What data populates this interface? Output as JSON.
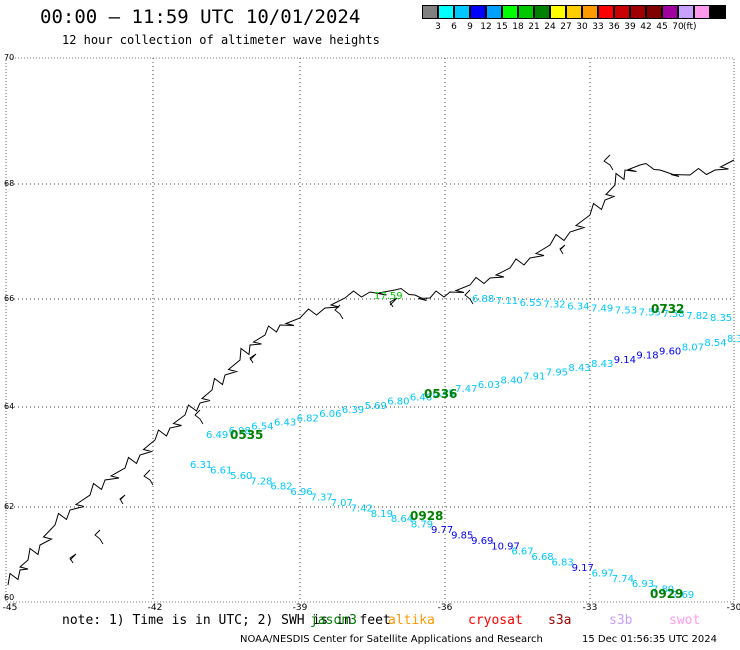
{
  "header": {
    "title": "00:00 – 11:59 UTC 10/01/2024",
    "subtitle": "12 hour collection of altimeter wave heights"
  },
  "legend": {
    "colors": [
      "#808080",
      "#00ffff",
      "#00c8ff",
      "#0000ff",
      "#00a0ff",
      "#00ff00",
      "#00c800",
      "#008000",
      "#ffff00",
      "#ffcc00",
      "#ff9900",
      "#ff0000",
      "#c80000",
      "#a00000",
      "#800000",
      "#a000a0",
      "#c8a0ff",
      "#ff99ee",
      "#000000"
    ],
    "labels": [
      "3",
      "6",
      "9",
      "12",
      "15",
      "18",
      "21",
      "24",
      "27",
      "30",
      "33",
      "36",
      "39",
      "42",
      "45",
      "70"
    ],
    "unit": "(ft)"
  },
  "axes": {
    "lon_labels": [
      "-45",
      "-42",
      "-39",
      "-36",
      "-33",
      "-30"
    ],
    "lat_labels": [
      "70",
      "68",
      "66",
      "64",
      "62",
      "60"
    ]
  },
  "tracks": [
    {
      "name": "jason3",
      "time_labels": [
        "0929",
        "0928"
      ],
      "swh": [
        "7.69",
        "7.80",
        "6.93",
        "7.74",
        "6.97",
        "9.17",
        "6.83",
        "6.68",
        "6.67",
        "10.97",
        "9.69",
        "9.85",
        "9.77",
        "8.79",
        "8.64",
        "8.19",
        "7.42",
        "7.07",
        "7.37",
        "6.96",
        "6.82",
        "7.28",
        "5.60",
        "6.61",
        "6.31"
      ]
    },
    {
      "name": "altika",
      "time_labels": [
        "0535",
        "0536"
      ],
      "swh": [
        "6.49",
        "6.98",
        "6.54",
        "6.43",
        "6.82",
        "6.06",
        "6.39",
        "5.69",
        "6.80",
        "6.46",
        "6.45",
        "7.47",
        "6.03",
        "8.40",
        "7.91",
        "7.95",
        "8.43",
        "8.43",
        "9.14",
        "9.18",
        "9.60",
        "8.07",
        "8.54",
        "8.3"
      ]
    },
    {
      "name": "cryosat",
      "time_labels": [
        "0732"
      ],
      "swh": [
        "8.35",
        "7.82",
        "7.58",
        "7.55",
        "7.53",
        "7.49",
        "6.34",
        "7.32",
        "6.55",
        "7.11",
        "6.88"
      ]
    },
    {
      "name": "s3a",
      "time_labels": [],
      "swh": [
        "17.59"
      ]
    }
  ],
  "footer": {
    "note": "note: 1) Time is in UTC; 2) SWH is in feet",
    "missions": [
      {
        "label": "jason3",
        "color": "#008000"
      },
      {
        "label": "altika",
        "color": "#ff9900"
      },
      {
        "label": "cryosat",
        "color": "#ff0000"
      },
      {
        "label": "s3a",
        "color": "#a00000"
      },
      {
        "label": "s3b",
        "color": "#c8a0ff"
      },
      {
        "label": "swot",
        "color": "#ff99ee"
      }
    ],
    "credit": "NOAA/NESDIS Center for Satellite Applications and Research",
    "timestamp": "15 Dec 01:56:35 UTC 2024"
  }
}
